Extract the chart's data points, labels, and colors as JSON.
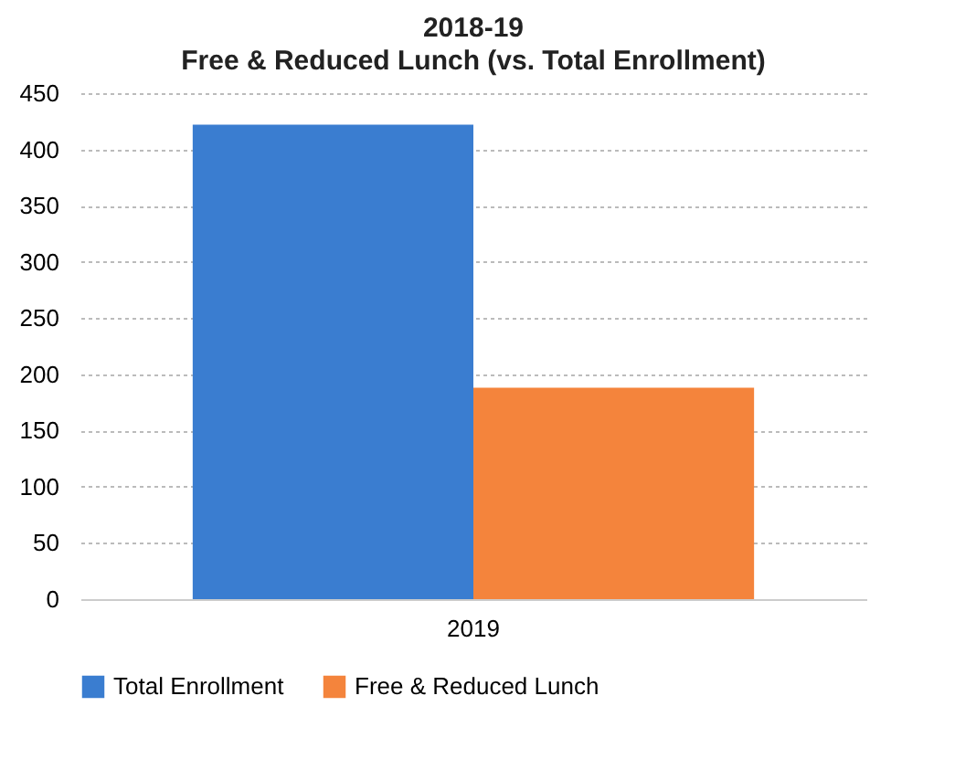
{
  "chart_data": {
    "type": "bar",
    "title": "2018-19",
    "subtitle": "Free & Reduced Lunch (vs. Total Enrollment)",
    "categories": [
      "2019"
    ],
    "series": [
      {
        "name": "Total Enrollment",
        "color": "#3a7dd0",
        "values": [
          422
        ]
      },
      {
        "name": "Free & Reduced Lunch",
        "color": "#f4843c",
        "values": [
          188
        ]
      }
    ],
    "ylim": [
      0,
      450
    ],
    "yticks": [
      0,
      50,
      100,
      150,
      200,
      250,
      300,
      350,
      400,
      450
    ],
    "grid": "y",
    "legend": "bottom"
  }
}
